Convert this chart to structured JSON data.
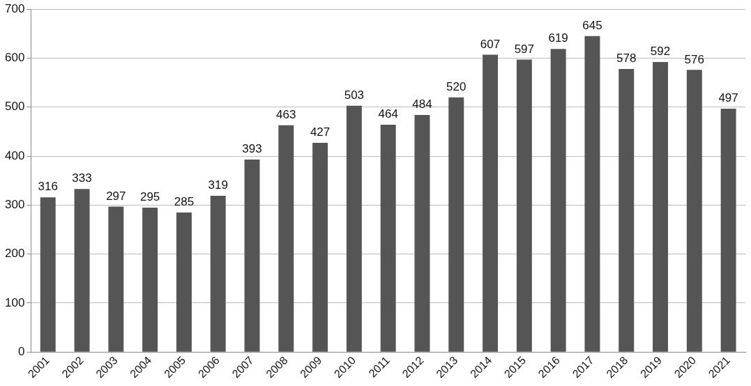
{
  "chart_data": {
    "type": "bar",
    "categories": [
      "2001",
      "2002",
      "2003",
      "2004",
      "2005",
      "2006",
      "2007",
      "2008",
      "2009",
      "2010",
      "2011",
      "2012",
      "2013",
      "2014",
      "2015",
      "2016",
      "2017",
      "2018",
      "2019",
      "2020",
      "2021"
    ],
    "values": [
      316,
      333,
      297,
      295,
      285,
      319,
      393,
      463,
      427,
      503,
      464,
      484,
      520,
      607,
      597,
      619,
      645,
      578,
      592,
      576,
      497
    ],
    "color": "#555555",
    "ylim": [
      0,
      700
    ],
    "yticks": [
      0,
      100,
      200,
      300,
      400,
      500,
      600,
      700
    ],
    "grid": "y",
    "data_labels": true,
    "legend": false
  }
}
